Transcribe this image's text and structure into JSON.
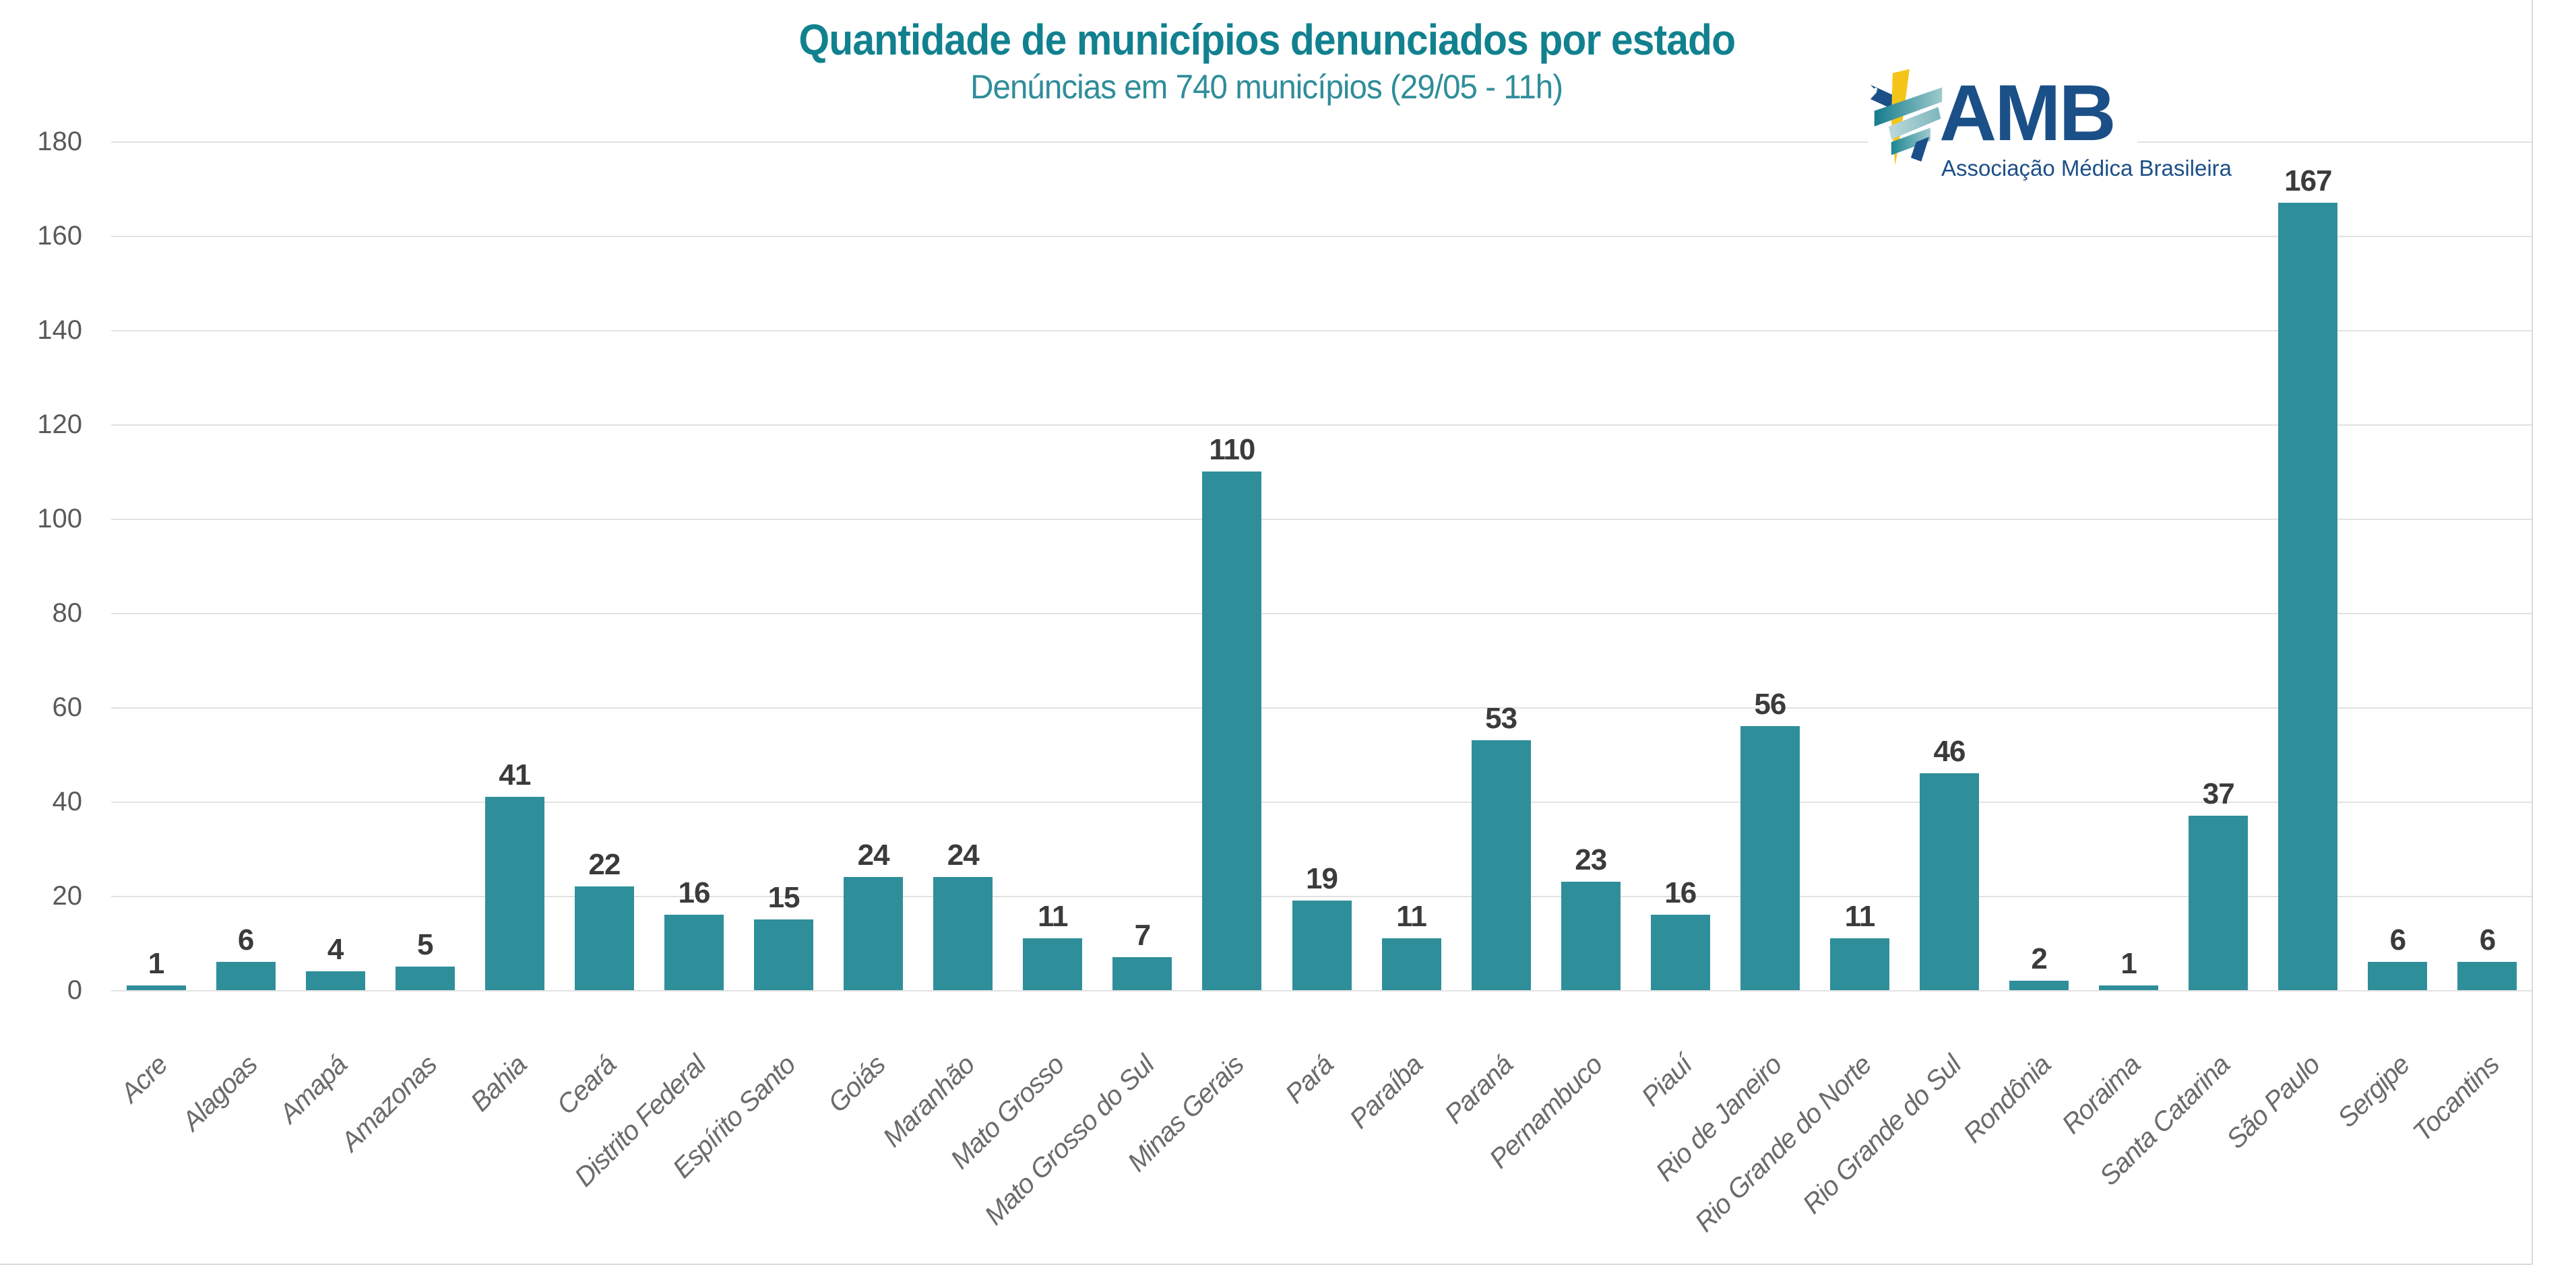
{
  "chart_data": {
    "type": "bar",
    "title": "Quantidade de municípios denunciados por estado",
    "subtitle": "Denúncias em 740 municípios (29/05 - 11h)",
    "categories": [
      "Acre",
      "Alagoas",
      "Amapá",
      "Amazonas",
      "Bahia",
      "Ceará",
      "Distrito Federal",
      "Espírito Santo",
      "Goiás",
      "Maranhão",
      "Mato Grosso",
      "Mato Grosso do Sul",
      "Minas Gerais",
      "Pará",
      "Paraíba",
      "Paraná",
      "Pernambuco",
      "Piauí",
      "Rio de Janeiro",
      "Rio Grande do Norte",
      "Rio Grande do Sul",
      "Rondônia",
      "Roraima",
      "Santa Catarina",
      "São Paulo",
      "Sergipe",
      "Tocantins"
    ],
    "values": [
      1,
      6,
      4,
      5,
      41,
      22,
      16,
      15,
      24,
      24,
      11,
      7,
      110,
      19,
      11,
      53,
      23,
      16,
      56,
      11,
      46,
      2,
      1,
      37,
      167,
      6,
      6
    ],
    "total": 740,
    "xlabel": "",
    "ylabel": "",
    "ylim": [
      0,
      180
    ],
    "yticks": [
      0,
      20,
      40,
      60,
      80,
      100,
      120,
      140,
      160,
      180
    ],
    "grid": true,
    "legend": "none",
    "bar_color": "#2e8f9a",
    "value_label_color": "#3b3b3b",
    "ytick_color": "#595959",
    "xtick_color": "#6b6b6b",
    "gridline_color": "#e2e2e2",
    "title_color": "#11818f",
    "subtitle_color": "#2f8d9a"
  },
  "logo": {
    "name": "AMB",
    "tagline": "Associação Médica Brasileira",
    "text_color": "#1b4f87",
    "yellow": "#f5c418",
    "teal_dark": "#157c8c",
    "teal_light": "#9ecacd",
    "navy": "#1b4f87"
  }
}
